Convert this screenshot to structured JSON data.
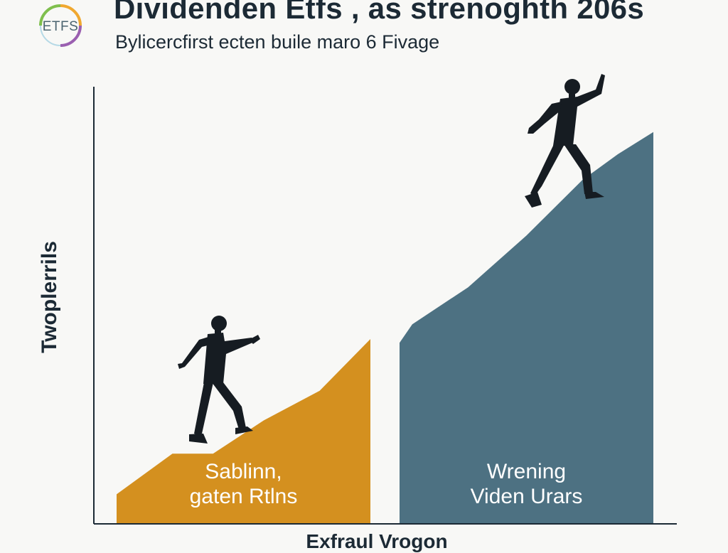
{
  "logo": {
    "text": "ETFS"
  },
  "title": "Dividenden Etfs , as strenoghth 206s",
  "subtitle": "Bylicercfirst ecten buile maro 6 Fivage",
  "chart_data": {
    "type": "area",
    "title": "Dividenden Etfs , as strenoghth 206s",
    "subtitle": "Bylicercfirst ecten buile maro 6 Fivage",
    "xlabel": "Exfraul Vrogon",
    "ylabel": "Twoplerrils",
    "grid": false,
    "legend": "none",
    "series": [
      {
        "label_lines": [
          "Sablinn,",
          "gaten Rtlns"
        ],
        "color": "#d4901f",
        "x": [
          0,
          0.22,
          0.38,
          0.58,
          0.8,
          1.0
        ],
        "y": [
          0.08,
          0.19,
          0.19,
          0.28,
          0.36,
          0.5
        ]
      },
      {
        "label_lines": [
          "Wrening",
          "Viden Urars"
        ],
        "color": "#4d7182",
        "x": [
          0,
          0.05,
          0.27,
          0.5,
          0.72,
          0.86,
          1.0
        ],
        "y": [
          0.49,
          0.54,
          0.64,
          0.78,
          0.93,
          1.0,
          1.06
        ]
      }
    ]
  }
}
